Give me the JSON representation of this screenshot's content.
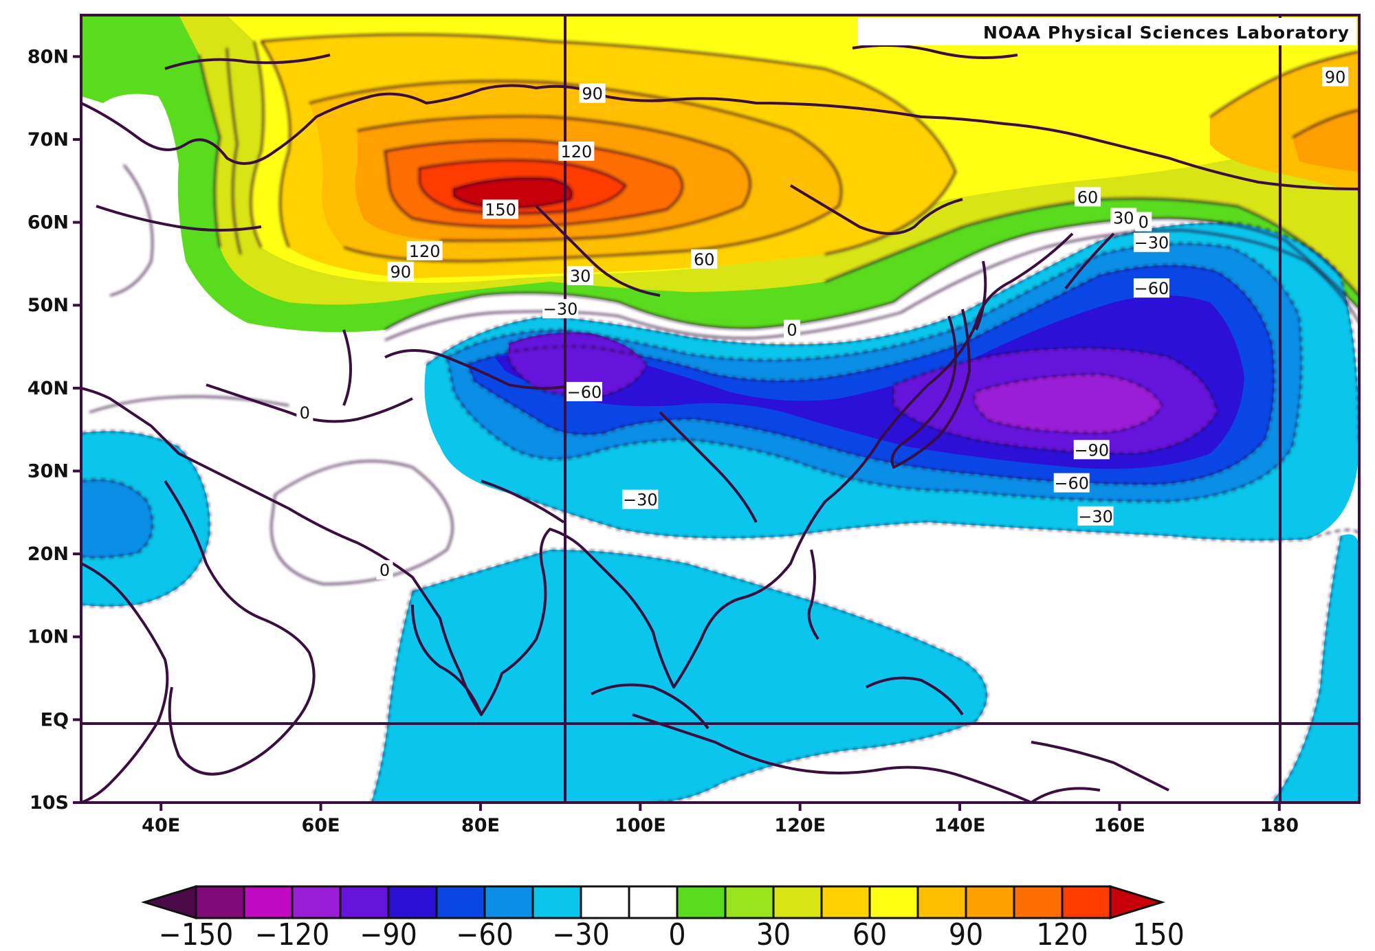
{
  "credit": "NOAA Physical Sciences Laboratory",
  "map": {
    "lat_ticks": [
      "80N",
      "70N",
      "60N",
      "50N",
      "40N",
      "30N",
      "20N",
      "10N",
      "EQ",
      "10S"
    ],
    "lon_ticks": [
      "40E",
      "60E",
      "80E",
      "100E",
      "120E",
      "140E",
      "160E",
      "180"
    ],
    "contour_labels": [
      {
        "text": "90",
        "lon": 94,
        "lat": 75.5
      },
      {
        "text": "120",
        "lon": 92,
        "lat": 68.5
      },
      {
        "text": "150",
        "lon": 82.5,
        "lat": 61.5
      },
      {
        "text": "120",
        "lon": 73,
        "lat": 56.5
      },
      {
        "text": "90",
        "lon": 70,
        "lat": 54
      },
      {
        "text": "30",
        "lon": 92.5,
        "lat": 53.5
      },
      {
        "text": "60",
        "lon": 108,
        "lat": 55.5
      },
      {
        "text": "-30",
        "lon": 90,
        "lat": 49.5
      },
      {
        "text": "0",
        "lon": 119,
        "lat": 47
      },
      {
        "text": "60",
        "lon": 156,
        "lat": 63
      },
      {
        "text": "30",
        "lon": 160.5,
        "lat": 60.5
      },
      {
        "text": "0",
        "lon": 163,
        "lat": 60
      },
      {
        "text": "-30",
        "lon": 164,
        "lat": 57.5
      },
      {
        "text": "-60",
        "lon": 164,
        "lat": 52
      },
      {
        "text": "90",
        "lon": 187,
        "lat": 77.5
      },
      {
        "text": "-60",
        "lon": 93,
        "lat": 39.5
      },
      {
        "text": "0",
        "lon": 58,
        "lat": 37
      },
      {
        "text": "0",
        "lon": 68,
        "lat": 18
      },
      {
        "text": "-30",
        "lon": 100,
        "lat": 26.5
      },
      {
        "text": "-90",
        "lon": 156.5,
        "lat": 32.5
      },
      {
        "text": "-60",
        "lon": 154,
        "lat": 28.5
      },
      {
        "text": "-30",
        "lon": 157,
        "lat": 24.5
      }
    ]
  },
  "colorbar": {
    "labels": [
      "-150",
      "-120",
      "-90",
      "-60",
      "-30",
      "0",
      "30",
      "60",
      "90",
      "120",
      "150"
    ],
    "colors": [
      "#4a0a48",
      "#800a7a",
      "#c20ac2",
      "#9a1ed8",
      "#6614dc",
      "#2d10d8",
      "#0a46e6",
      "#0a8ee6",
      "#0ac6ec",
      "#ffffff",
      "#ffffff",
      "#5adc1e",
      "#9ae41e",
      "#d8e414",
      "#ffd200",
      "#ffff14",
      "#ffbe00",
      "#ffa000",
      "#ff6e00",
      "#ff3c00",
      "#c8000a"
    ]
  }
}
